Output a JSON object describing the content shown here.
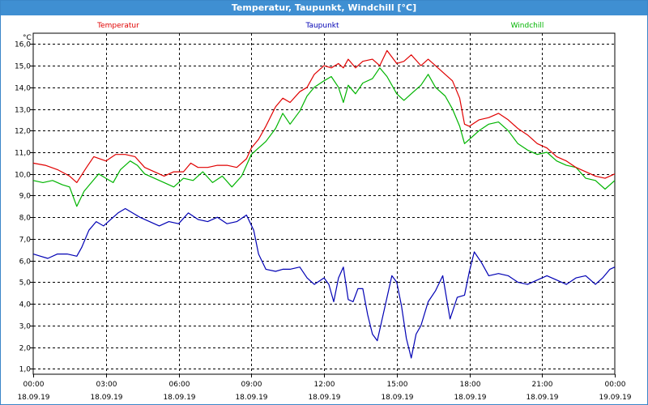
{
  "window": {
    "title": "Temperatur, Taupunkt, Windchill [°C]"
  },
  "colors": {
    "titlebar": "#3f8fd2",
    "grid": "#000000",
    "temperatur": "#e00000",
    "taupunkt": "#0000b4",
    "windchill": "#00b400"
  },
  "chart_data": {
    "type": "line",
    "title": "Temperatur, Taupunkt, Windchill [°C]",
    "unit_label": "°C",
    "grid": true,
    "legend": "top",
    "xlim": [
      0,
      24
    ],
    "ylim": [
      0.75,
      16.5
    ],
    "yticks": [
      "1,0",
      "2,0",
      "3,0",
      "4,0",
      "5,0",
      "6,0",
      "7,0",
      "8,0",
      "9,0",
      "10,0",
      "11,0",
      "12,0",
      "13,0",
      "14,0",
      "15,0",
      "16,0"
    ],
    "ytick_values": [
      1,
      2,
      3,
      4,
      5,
      6,
      7,
      8,
      9,
      10,
      11,
      12,
      13,
      14,
      15,
      16
    ],
    "xticks": [
      {
        "time": "00:00",
        "date": "18.09.19"
      },
      {
        "time": "03:00",
        "date": "18.09.19"
      },
      {
        "time": "06:00",
        "date": "18.09.19"
      },
      {
        "time": "09:00",
        "date": "18.09.19"
      },
      {
        "time": "12:00",
        "date": "18.09.19"
      },
      {
        "time": "15:00",
        "date": "18.09.19"
      },
      {
        "time": "18:00",
        "date": "18.09.19"
      },
      {
        "time": "21:00",
        "date": "18.09.19"
      },
      {
        "time": "00:00",
        "date": "19.09.19"
      }
    ],
    "series": [
      {
        "name": "Temperatur",
        "color": "#e00000",
        "points": [
          [
            0,
            10.5
          ],
          [
            0.5,
            10.4
          ],
          [
            1,
            10.2
          ],
          [
            1.5,
            9.9
          ],
          [
            1.8,
            9.6
          ],
          [
            2.2,
            10.3
          ],
          [
            2.5,
            10.8
          ],
          [
            3,
            10.6
          ],
          [
            3.4,
            10.9
          ],
          [
            3.8,
            10.9
          ],
          [
            4.2,
            10.8
          ],
          [
            4.6,
            10.3
          ],
          [
            5,
            10.1
          ],
          [
            5.4,
            9.9
          ],
          [
            5.8,
            10.1
          ],
          [
            6.2,
            10.1
          ],
          [
            6.5,
            10.5
          ],
          [
            6.8,
            10.3
          ],
          [
            7.2,
            10.3
          ],
          [
            7.6,
            10.4
          ],
          [
            8,
            10.4
          ],
          [
            8.4,
            10.3
          ],
          [
            8.8,
            10.7
          ],
          [
            9,
            11.2
          ],
          [
            9.3,
            11.6
          ],
          [
            9.6,
            12.2
          ],
          [
            10,
            13.1
          ],
          [
            10.3,
            13.5
          ],
          [
            10.6,
            13.3
          ],
          [
            11,
            13.8
          ],
          [
            11.3,
            14.0
          ],
          [
            11.6,
            14.6
          ],
          [
            12,
            15.0
          ],
          [
            12.3,
            14.9
          ],
          [
            12.6,
            15.1
          ],
          [
            12.8,
            14.9
          ],
          [
            13,
            15.3
          ],
          [
            13.3,
            14.9
          ],
          [
            13.6,
            15.2
          ],
          [
            14,
            15.3
          ],
          [
            14.3,
            15.0
          ],
          [
            14.6,
            15.7
          ],
          [
            15,
            15.1
          ],
          [
            15.3,
            15.2
          ],
          [
            15.6,
            15.5
          ],
          [
            16,
            15.0
          ],
          [
            16.3,
            15.3
          ],
          [
            16.6,
            15.0
          ],
          [
            17,
            14.6
          ],
          [
            17.3,
            14.3
          ],
          [
            17.6,
            13.5
          ],
          [
            17.8,
            12.3
          ],
          [
            18,
            12.2
          ],
          [
            18.4,
            12.5
          ],
          [
            18.8,
            12.6
          ],
          [
            19.2,
            12.8
          ],
          [
            19.6,
            12.5
          ],
          [
            20,
            12.1
          ],
          [
            20.4,
            11.8
          ],
          [
            20.8,
            11.4
          ],
          [
            21.2,
            11.2
          ],
          [
            21.6,
            10.8
          ],
          [
            22,
            10.6
          ],
          [
            22.4,
            10.3
          ],
          [
            22.8,
            10.1
          ],
          [
            23.2,
            9.9
          ],
          [
            23.6,
            9.8
          ],
          [
            24,
            10.0
          ]
        ]
      },
      {
        "name": "Taupunkt",
        "color": "#0000b4",
        "points": [
          [
            0,
            6.3
          ],
          [
            0.3,
            6.2
          ],
          [
            0.6,
            6.1
          ],
          [
            1,
            6.3
          ],
          [
            1.4,
            6.3
          ],
          [
            1.8,
            6.2
          ],
          [
            2,
            6.6
          ],
          [
            2.3,
            7.4
          ],
          [
            2.6,
            7.8
          ],
          [
            2.9,
            7.6
          ],
          [
            3.2,
            7.9
          ],
          [
            3.5,
            8.2
          ],
          [
            3.8,
            8.4
          ],
          [
            4.1,
            8.2
          ],
          [
            4.4,
            8.0
          ],
          [
            4.8,
            7.8
          ],
          [
            5.2,
            7.6
          ],
          [
            5.6,
            7.8
          ],
          [
            6,
            7.7
          ],
          [
            6.4,
            8.2
          ],
          [
            6.8,
            7.9
          ],
          [
            7.2,
            7.8
          ],
          [
            7.6,
            8.0
          ],
          [
            8,
            7.7
          ],
          [
            8.4,
            7.8
          ],
          [
            8.8,
            8.1
          ],
          [
            9.1,
            7.4
          ],
          [
            9.3,
            6.3
          ],
          [
            9.6,
            5.6
          ],
          [
            10,
            5.5
          ],
          [
            10.3,
            5.6
          ],
          [
            10.6,
            5.6
          ],
          [
            11,
            5.7
          ],
          [
            11.3,
            5.2
          ],
          [
            11.6,
            4.9
          ],
          [
            12,
            5.2
          ],
          [
            12.2,
            4.9
          ],
          [
            12.4,
            4.1
          ],
          [
            12.6,
            5.2
          ],
          [
            12.8,
            5.7
          ],
          [
            13,
            4.2
          ],
          [
            13.2,
            4.1
          ],
          [
            13.4,
            4.7
          ],
          [
            13.6,
            4.7
          ],
          [
            13.8,
            3.5
          ],
          [
            14,
            2.6
          ],
          [
            14.2,
            2.3
          ],
          [
            14.5,
            3.8
          ],
          [
            14.8,
            5.3
          ],
          [
            15,
            5.0
          ],
          [
            15.2,
            3.9
          ],
          [
            15.4,
            2.4
          ],
          [
            15.6,
            1.5
          ],
          [
            15.8,
            2.6
          ],
          [
            16,
            3.0
          ],
          [
            16.3,
            4.1
          ],
          [
            16.6,
            4.6
          ],
          [
            16.9,
            5.3
          ],
          [
            17.2,
            3.3
          ],
          [
            17.5,
            4.3
          ],
          [
            17.8,
            4.4
          ],
          [
            18,
            5.5
          ],
          [
            18.2,
            6.4
          ],
          [
            18.5,
            5.9
          ],
          [
            18.8,
            5.3
          ],
          [
            19.2,
            5.4
          ],
          [
            19.6,
            5.3
          ],
          [
            20,
            5.0
          ],
          [
            20.4,
            4.9
          ],
          [
            20.8,
            5.1
          ],
          [
            21.2,
            5.3
          ],
          [
            21.6,
            5.1
          ],
          [
            22,
            4.9
          ],
          [
            22.4,
            5.2
          ],
          [
            22.8,
            5.3
          ],
          [
            23.2,
            4.9
          ],
          [
            23.5,
            5.2
          ],
          [
            23.8,
            5.6
          ],
          [
            24,
            5.7
          ]
        ]
      },
      {
        "name": "Windchill",
        "color": "#00b400",
        "points": [
          [
            0,
            9.7
          ],
          [
            0.4,
            9.6
          ],
          [
            0.8,
            9.7
          ],
          [
            1.2,
            9.5
          ],
          [
            1.5,
            9.4
          ],
          [
            1.8,
            8.5
          ],
          [
            2.1,
            9.2
          ],
          [
            2.4,
            9.6
          ],
          [
            2.7,
            10.0
          ],
          [
            3,
            9.8
          ],
          [
            3.3,
            9.6
          ],
          [
            3.6,
            10.2
          ],
          [
            4,
            10.6
          ],
          [
            4.3,
            10.4
          ],
          [
            4.6,
            10.0
          ],
          [
            5,
            9.8
          ],
          [
            5.4,
            9.6
          ],
          [
            5.8,
            9.4
          ],
          [
            6.2,
            9.8
          ],
          [
            6.6,
            9.7
          ],
          [
            7,
            10.1
          ],
          [
            7.4,
            9.6
          ],
          [
            7.8,
            9.9
          ],
          [
            8.2,
            9.4
          ],
          [
            8.6,
            9.9
          ],
          [
            9,
            10.9
          ],
          [
            9.3,
            11.2
          ],
          [
            9.6,
            11.5
          ],
          [
            10,
            12.1
          ],
          [
            10.3,
            12.8
          ],
          [
            10.6,
            12.3
          ],
          [
            11,
            12.9
          ],
          [
            11.3,
            13.6
          ],
          [
            11.6,
            14.0
          ],
          [
            12,
            14.3
          ],
          [
            12.3,
            14.5
          ],
          [
            12.6,
            14.0
          ],
          [
            12.8,
            13.3
          ],
          [
            13,
            14.1
          ],
          [
            13.3,
            13.7
          ],
          [
            13.6,
            14.2
          ],
          [
            14,
            14.4
          ],
          [
            14.3,
            14.9
          ],
          [
            14.6,
            14.5
          ],
          [
            15,
            13.7
          ],
          [
            15.3,
            13.4
          ],
          [
            15.6,
            13.7
          ],
          [
            16,
            14.1
          ],
          [
            16.3,
            14.6
          ],
          [
            16.6,
            14.0
          ],
          [
            17,
            13.6
          ],
          [
            17.3,
            13.0
          ],
          [
            17.6,
            12.2
          ],
          [
            17.8,
            11.4
          ],
          [
            18,
            11.6
          ],
          [
            18.4,
            12.0
          ],
          [
            18.8,
            12.3
          ],
          [
            19.2,
            12.4
          ],
          [
            19.6,
            12.0
          ],
          [
            20,
            11.4
          ],
          [
            20.4,
            11.1
          ],
          [
            20.8,
            10.9
          ],
          [
            21.2,
            11.0
          ],
          [
            21.6,
            10.6
          ],
          [
            22,
            10.4
          ],
          [
            22.4,
            10.3
          ],
          [
            22.8,
            9.8
          ],
          [
            23.2,
            9.7
          ],
          [
            23.6,
            9.3
          ],
          [
            24,
            9.7
          ]
        ]
      }
    ]
  }
}
